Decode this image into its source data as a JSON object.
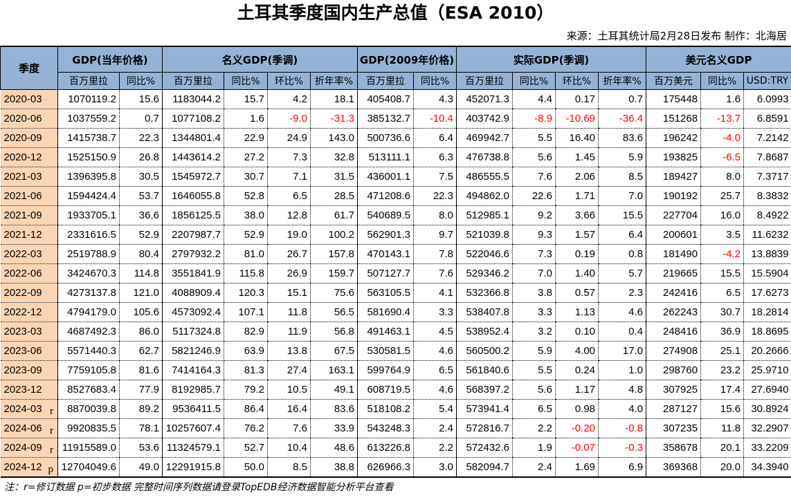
{
  "title": "土耳其季度国内生产总值（ESA 2010）",
  "source": "来源：土耳其统计局2月28日发布  制作：北海居",
  "headers": {
    "quarter": "季度",
    "groups": [
      "GDP(当年价格)",
      "名义GDP(季调)",
      "GDP(2009年价格)",
      "实际GDP(季调)",
      "美元名义GDP"
    ],
    "sub": [
      "百万里拉",
      "同比%",
      "百万里拉",
      "同比%",
      "环比%",
      "折年率%",
      "百万里拉",
      "同比%",
      "百万里拉",
      "同比%",
      "环比%",
      "折年率%",
      "百万美元",
      "同比%",
      "USD:TRY"
    ]
  },
  "rows": [
    {
      "q": "2020-03",
      "flag": "",
      "v": [
        "1070119.2",
        "15.6",
        "1183044.2",
        "15.7",
        "4.2",
        "18.1",
        "405408.7",
        "4.3",
        "452071.3",
        "4.4",
        "0.17",
        "0.7",
        "175448",
        "1.6",
        "6.0993"
      ]
    },
    {
      "q": "2020-06",
      "flag": "",
      "v": [
        "1037559.2",
        "0.7",
        "1077108.2",
        "1.6",
        "-9.0",
        "-31.3",
        "385132.7",
        "-10.4",
        "403742.9",
        "-8.9",
        "-10.69",
        "-36.4",
        "151268",
        "-13.7",
        "6.8591"
      ]
    },
    {
      "q": "2020-09",
      "flag": "",
      "v": [
        "1415738.7",
        "22.3",
        "1344801.4",
        "22.9",
        "24.9",
        "143.0",
        "500736.6",
        "6.4",
        "469942.7",
        "5.5",
        "16.40",
        "83.6",
        "196242",
        "-4.0",
        "7.2142"
      ]
    },
    {
      "q": "2020-12",
      "flag": "",
      "v": [
        "1525150.9",
        "26.8",
        "1443614.2",
        "27.2",
        "7.3",
        "32.8",
        "513111.1",
        "6.3",
        "476738.8",
        "5.6",
        "1.45",
        "5.9",
        "193825",
        "-6.5",
        "7.8687"
      ]
    },
    {
      "q": "2021-03",
      "flag": "",
      "v": [
        "1396395.8",
        "30.5",
        "1545972.7",
        "30.7",
        "7.1",
        "31.5",
        "436001.1",
        "7.5",
        "486555.5",
        "7.6",
        "2.06",
        "8.5",
        "189427",
        "8.0",
        "7.3717"
      ]
    },
    {
      "q": "2021-06",
      "flag": "",
      "v": [
        "1594424.4",
        "53.7",
        "1646055.8",
        "52.8",
        "6.5",
        "28.5",
        "471208.6",
        "22.3",
        "494862.0",
        "22.6",
        "1.71",
        "7.0",
        "190192",
        "25.7",
        "8.3832"
      ]
    },
    {
      "q": "2021-09",
      "flag": "",
      "v": [
        "1933705.1",
        "36.6",
        "1856125.5",
        "38.0",
        "12.8",
        "61.7",
        "540689.5",
        "8.0",
        "512985.1",
        "9.2",
        "3.66",
        "15.5",
        "227704",
        "16.0",
        "8.4922"
      ]
    },
    {
      "q": "2021-12",
      "flag": "",
      "v": [
        "2331616.5",
        "52.9",
        "2207987.7",
        "52.9",
        "19.0",
        "100.2",
        "562901.3",
        "9.7",
        "521039.8",
        "9.3",
        "1.57",
        "6.4",
        "200601",
        "3.5",
        "11.6232"
      ]
    },
    {
      "q": "2022-03",
      "flag": "",
      "v": [
        "2519788.9",
        "80.4",
        "2797932.2",
        "81.0",
        "26.7",
        "157.8",
        "470143.1",
        "7.8",
        "522046.6",
        "7.3",
        "0.19",
        "0.8",
        "181490",
        "-4.2",
        "13.8839"
      ]
    },
    {
      "q": "2022-06",
      "flag": "",
      "v": [
        "3424670.3",
        "114.8",
        "3551841.9",
        "115.8",
        "26.9",
        "159.7",
        "507127.7",
        "7.6",
        "529346.2",
        "7.0",
        "1.40",
        "5.7",
        "219665",
        "15.5",
        "15.5904"
      ]
    },
    {
      "q": "2022-09",
      "flag": "",
      "v": [
        "4273137.8",
        "121.0",
        "4088909.4",
        "120.3",
        "15.1",
        "75.6",
        "563105.5",
        "4.1",
        "532366.8",
        "3.8",
        "0.57",
        "2.3",
        "242416",
        "6.5",
        "17.6273"
      ]
    },
    {
      "q": "2022-12",
      "flag": "",
      "v": [
        "4794179.0",
        "105.6",
        "4573092.4",
        "107.1",
        "11.8",
        "56.5",
        "581690.4",
        "3.3",
        "538407.8",
        "3.3",
        "1.13",
        "4.6",
        "262243",
        "30.7",
        "18.2814"
      ]
    },
    {
      "q": "2023-03",
      "flag": "",
      "v": [
        "4687492.3",
        "86.0",
        "5117324.8",
        "82.9",
        "11.9",
        "56.8",
        "491463.1",
        "4.5",
        "538952.4",
        "3.2",
        "0.10",
        "0.4",
        "248416",
        "36.9",
        "18.8695"
      ]
    },
    {
      "q": "2023-06",
      "flag": "",
      "v": [
        "5571440.3",
        "62.7",
        "5821246.9",
        "63.9",
        "13.8",
        "67.5",
        "530581.5",
        "4.6",
        "560500.2",
        "5.9",
        "4.00",
        "17.0",
        "274908",
        "25.1",
        "20.2666"
      ]
    },
    {
      "q": "2023-09",
      "flag": "",
      "v": [
        "7759105.8",
        "81.6",
        "7414164.3",
        "81.3",
        "27.4",
        "163.1",
        "599764.9",
        "6.5",
        "561840.6",
        "5.5",
        "0.24",
        "1.0",
        "298760",
        "23.2",
        "25.9710"
      ]
    },
    {
      "q": "2023-12",
      "flag": "",
      "v": [
        "8527683.4",
        "77.9",
        "8192985.7",
        "79.2",
        "10.5",
        "49.1",
        "608719.5",
        "4.6",
        "568397.2",
        "5.6",
        "1.17",
        "4.8",
        "307925",
        "17.4",
        "27.6940"
      ]
    },
    {
      "q": "2024-03",
      "flag": "r",
      "v": [
        "8870039.8",
        "89.2",
        "9536411.5",
        "86.4",
        "16.4",
        "83.6",
        "518108.2",
        "5.4",
        "573941.4",
        "6.5",
        "0.98",
        "4.0",
        "287127",
        "15.6",
        "30.8924"
      ]
    },
    {
      "q": "2024-06",
      "flag": "r",
      "v": [
        "9920835.5",
        "78.1",
        "10257607.4",
        "76.2",
        "7.6",
        "33.9",
        "543248.3",
        "2.4",
        "572816.7",
        "2.2",
        "-0.20",
        "-0.8",
        "307235",
        "11.8",
        "32.2907"
      ]
    },
    {
      "q": "2024-09",
      "flag": "r",
      "v": [
        "11915589.0",
        "53.6",
        "11324579.1",
        "52.7",
        "10.4",
        "48.6",
        "613226.8",
        "2.2",
        "572432.6",
        "1.9",
        "-0.07",
        "-0.3",
        "358678",
        "20.1",
        "33.2209"
      ]
    },
    {
      "q": "2024-12",
      "flag": "p",
      "v": [
        "12704049.6",
        "49.0",
        "12291915.8",
        "50.0",
        "8.5",
        "38.8",
        "626966.3",
        "3.0",
        "582094.7",
        "2.4",
        "1.69",
        "6.9",
        "369368",
        "20.0",
        "34.3940"
      ]
    }
  ],
  "footer": "注：r=修订数据 p=初步数据 完整时间序列数据请登录TopEDB经济数据智能分析平台查看",
  "watermark": "经济数据智能分析平台",
  "colors": {
    "header_bg": "#95b3d7",
    "quarter_bg": "#fcd5b4",
    "negative": "#ff0000"
  }
}
